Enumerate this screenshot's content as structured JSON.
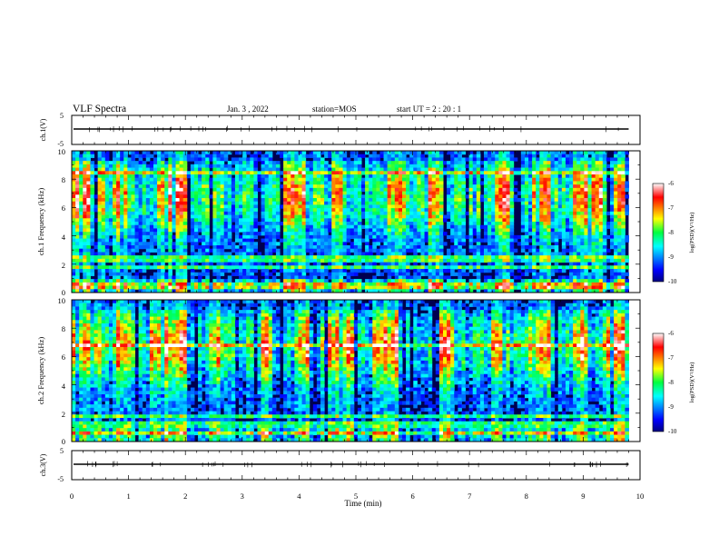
{
  "header": {
    "title": "VLF Spectra",
    "date": "Jan. 3  , 2022",
    "station": "station=MOS",
    "start": "start  UT =   2 : 20 : 1"
  },
  "chart_data": [
    {
      "type": "line",
      "panel": "ch.1 waveform",
      "ylabel": "ch.1(V)",
      "ylim": [
        -5,
        5
      ],
      "yticks": [
        "5",
        "-5"
      ],
      "x": [
        0,
        10
      ],
      "series": [
        {
          "values": [
            0,
            0
          ]
        }
      ]
    },
    {
      "type": "heatmap",
      "panel": "ch.1 spectrogram",
      "ylabel": "ch.1\nFrequency (kHz)",
      "ylim": [
        0,
        10
      ],
      "yticks": [
        "0",
        "2",
        "4",
        "6",
        "8",
        "10"
      ],
      "xlim": [
        0,
        10
      ],
      "data_end_min": 9.8,
      "colorbar": {
        "label": "log(PSD)(V²/Hz)",
        "range": [
          -10,
          -6
        ],
        "ticks": [
          "-6",
          "-7",
          "-8",
          "-9",
          "-10"
        ]
      },
      "bright_intervals_min": [
        [
          0.0,
          0.35
        ],
        [
          0.45,
          0.6
        ],
        [
          0.7,
          1.0
        ],
        [
          1.35,
          2.05
        ],
        [
          3.75,
          4.1
        ],
        [
          4.55,
          4.75
        ],
        [
          5.55,
          5.85
        ],
        [
          6.3,
          6.55
        ],
        [
          7.45,
          7.7
        ],
        [
          8.1,
          8.45
        ],
        [
          8.75,
          9.05
        ],
        [
          9.15,
          9.35
        ],
        [
          9.55,
          9.75
        ]
      ],
      "emission_bands_khz": [
        0.5,
        1.8,
        2.4,
        8.5
      ]
    },
    {
      "type": "heatmap",
      "panel": "ch.2 spectrogram",
      "ylabel": "ch.2\nFrequency (kHz)",
      "ylim": [
        0,
        10
      ],
      "yticks": [
        "0",
        "2",
        "4",
        "6",
        "8",
        "10"
      ],
      "xlim": [
        0,
        10
      ],
      "data_end_min": 9.8,
      "colorbar": {
        "label": "log(PSD)(V²/Hz)",
        "range": [
          -10,
          -6
        ],
        "ticks": [
          "-6",
          "-7",
          "-8",
          "-9",
          "-10"
        ]
      },
      "bright_intervals_min": [
        [
          0.0,
          0.55
        ],
        [
          0.8,
          1.05
        ],
        [
          1.35,
          2.05
        ],
        [
          2.4,
          2.6
        ],
        [
          3.3,
          3.55
        ],
        [
          3.9,
          4.15
        ],
        [
          4.5,
          4.95
        ],
        [
          5.3,
          5.75
        ],
        [
          6.45,
          6.75
        ],
        [
          7.4,
          7.6
        ],
        [
          8.05,
          8.45
        ],
        [
          8.75,
          9.1
        ],
        [
          9.35,
          9.75
        ]
      ],
      "emission_bands_khz": [
        0.6,
        1.2,
        1.7,
        6.8
      ]
    },
    {
      "type": "line",
      "panel": "ch.3 waveform",
      "ylabel": "ch.3(V)",
      "ylim": [
        -5,
        5
      ],
      "yticks": [
        "5",
        "-5"
      ],
      "x": [
        0,
        10
      ],
      "series": [
        {
          "values": [
            0,
            0
          ]
        }
      ]
    }
  ],
  "xaxis": {
    "label": "Time  (min)",
    "range": [
      0,
      10
    ],
    "ticks": [
      "0",
      "1",
      "2",
      "3",
      "4",
      "5",
      "6",
      "7",
      "8",
      "9",
      "10"
    ]
  }
}
